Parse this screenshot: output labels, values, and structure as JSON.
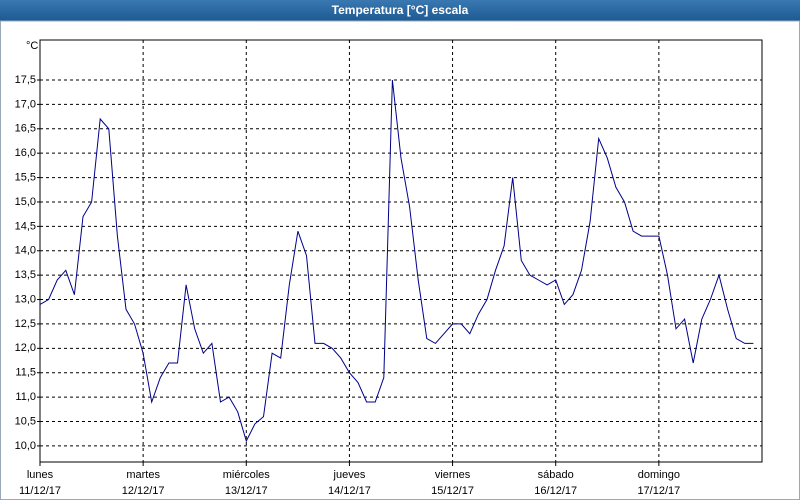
{
  "chart_data": {
    "type": "line",
    "title": "Temperatura [°C] escala",
    "y_label": "°C",
    "ylim": [
      9.67,
      18.32
    ],
    "yticks": [
      {
        "value": 10.0,
        "label": "10,0"
      },
      {
        "value": 10.5,
        "label": "10,5"
      },
      {
        "value": 11.0,
        "label": "11,0"
      },
      {
        "value": 11.5,
        "label": "11,5"
      },
      {
        "value": 12.0,
        "label": "12,0"
      },
      {
        "value": 12.5,
        "label": "12,5"
      },
      {
        "value": 13.0,
        "label": "13,0"
      },
      {
        "value": 13.5,
        "label": "13,5"
      },
      {
        "value": 14.0,
        "label": "14,0"
      },
      {
        "value": 14.5,
        "label": "14,5"
      },
      {
        "value": 15.0,
        "label": "15,0"
      },
      {
        "value": 15.5,
        "label": "15,5"
      },
      {
        "value": 16.0,
        "label": "16,0"
      },
      {
        "value": 16.5,
        "label": "16,5"
      },
      {
        "value": 17.0,
        "label": "17,0"
      },
      {
        "value": 17.5,
        "label": "17,5"
      }
    ],
    "xlim": [
      "2017-12-11T00:00",
      "2017-12-18T00:00"
    ],
    "xticks": [
      {
        "value": "2017-12-11T00:00",
        "label": "lunes",
        "date": "11/12/17"
      },
      {
        "value": "2017-12-12T00:00",
        "label": "martes",
        "date": "12/12/17"
      },
      {
        "value": "2017-12-13T00:00",
        "label": "miércoles",
        "date": "13/12/17"
      },
      {
        "value": "2017-12-14T00:00",
        "label": "jueves",
        "date": "14/12/17"
      },
      {
        "value": "2017-12-15T00:00",
        "label": "viernes",
        "date": "15/12/17"
      },
      {
        "value": "2017-12-16T00:00",
        "label": "sábado",
        "date": "16/12/17"
      },
      {
        "value": "2017-12-17T00:00",
        "label": "domingo",
        "date": "17/12/17"
      }
    ],
    "grid": true,
    "series": [
      {
        "color": "#00008b",
        "x": [
          "2017-12-11T00:00",
          "2017-12-11T02:00",
          "2017-12-11T04:00",
          "2017-12-11T06:00",
          "2017-12-11T08:00",
          "2017-12-11T10:00",
          "2017-12-11T12:00",
          "2017-12-11T14:00",
          "2017-12-11T16:00",
          "2017-12-11T18:00",
          "2017-12-11T20:00",
          "2017-12-11T22:00",
          "2017-12-12T00:00",
          "2017-12-12T02:00",
          "2017-12-12T04:00",
          "2017-12-12T06:00",
          "2017-12-12T08:00",
          "2017-12-12T10:00",
          "2017-12-12T12:00",
          "2017-12-12T14:00",
          "2017-12-12T16:00",
          "2017-12-12T18:00",
          "2017-12-12T20:00",
          "2017-12-12T22:00",
          "2017-12-13T00:00",
          "2017-12-13T02:00",
          "2017-12-13T04:00",
          "2017-12-13T06:00",
          "2017-12-13T08:00",
          "2017-12-13T10:00",
          "2017-12-13T12:00",
          "2017-12-13T14:00",
          "2017-12-13T16:00",
          "2017-12-13T18:00",
          "2017-12-13T20:00",
          "2017-12-13T22:00",
          "2017-12-14T00:00",
          "2017-12-14T02:00",
          "2017-12-14T04:00",
          "2017-12-14T06:00",
          "2017-12-14T08:00",
          "2017-12-14T10:00",
          "2017-12-14T12:00",
          "2017-12-14T14:00",
          "2017-12-14T16:00",
          "2017-12-14T18:00",
          "2017-12-14T20:00",
          "2017-12-14T22:00",
          "2017-12-15T00:00",
          "2017-12-15T02:00",
          "2017-12-15T04:00",
          "2017-12-15T06:00",
          "2017-12-15T08:00",
          "2017-12-15T10:00",
          "2017-12-15T12:00",
          "2017-12-15T14:00",
          "2017-12-15T16:00",
          "2017-12-15T18:00",
          "2017-12-15T20:00",
          "2017-12-15T22:00",
          "2017-12-16T00:00",
          "2017-12-16T02:00",
          "2017-12-16T04:00",
          "2017-12-16T06:00",
          "2017-12-16T08:00",
          "2017-12-16T10:00",
          "2017-12-16T12:00",
          "2017-12-16T14:00",
          "2017-12-16T16:00",
          "2017-12-16T18:00",
          "2017-12-16T20:00",
          "2017-12-16T22:00",
          "2017-12-17T00:00",
          "2017-12-17T02:00",
          "2017-12-17T04:00",
          "2017-12-17T06:00",
          "2017-12-17T08:00",
          "2017-12-17T10:00",
          "2017-12-17T12:00",
          "2017-12-17T14:00",
          "2017-12-17T16:00",
          "2017-12-17T18:00",
          "2017-12-17T20:00",
          "2017-12-17T22:00"
        ],
        "values": [
          12.9,
          13.0,
          13.4,
          13.6,
          13.1,
          14.7,
          15.0,
          16.7,
          16.5,
          14.3,
          12.8,
          12.5,
          11.9,
          10.9,
          11.4,
          11.7,
          11.7,
          13.3,
          12.4,
          11.9,
          12.1,
          10.9,
          11.0,
          10.7,
          10.1,
          10.45,
          10.6,
          11.9,
          11.8,
          13.3,
          14.4,
          13.9,
          12.1,
          12.1,
          12.0,
          11.8,
          11.5,
          11.3,
          10.9,
          10.9,
          11.4,
          17.5,
          15.9,
          14.9,
          13.4,
          12.2,
          12.1,
          12.3,
          12.5,
          12.5,
          12.3,
          12.7,
          13.0,
          13.6,
          14.1,
          15.5,
          13.8,
          13.5,
          13.4,
          13.3,
          13.4,
          12.9,
          13.1,
          13.6,
          14.6,
          16.3,
          15.9,
          15.3,
          15.0,
          14.4,
          14.3,
          14.3,
          14.3,
          13.5,
          12.4,
          12.6,
          11.7,
          12.6,
          13.0,
          13.5,
          12.8,
          12.2,
          12.1,
          12.1
        ]
      }
    ]
  }
}
